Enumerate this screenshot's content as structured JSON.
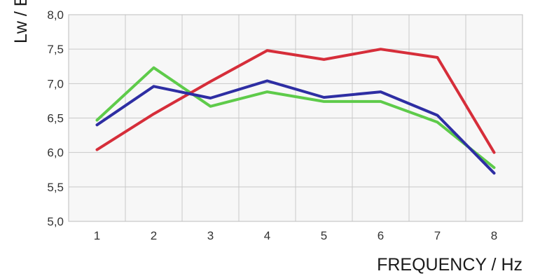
{
  "chart_data": {
    "type": "line",
    "xlabel": "FREQUENCY / Hz",
    "ylabel": "Lw / E",
    "x": [
      1,
      2,
      3,
      4,
      5,
      6,
      7,
      8
    ],
    "xlim": [
      0.5,
      8.5
    ],
    "ylim": [
      5.0,
      8.0
    ],
    "y_ticks": [
      "5,0",
      "5,5",
      "6,0",
      "6,5",
      "7,0",
      "7,5",
      "8,0"
    ],
    "x_ticks": [
      "1",
      "2",
      "3",
      "4",
      "5",
      "6",
      "7",
      "8"
    ],
    "grid": true,
    "series": [
      {
        "color": "#5ecb4a",
        "values": [
          6.47,
          7.23,
          6.67,
          6.88,
          6.74,
          6.74,
          6.44,
          5.78
        ]
      },
      {
        "color": "#d62e3a",
        "values": [
          6.04,
          6.56,
          7.03,
          7.48,
          7.35,
          7.5,
          7.38,
          6.0
        ]
      },
      {
        "color": "#2e2ea3",
        "values": [
          6.4,
          6.96,
          6.79,
          7.04,
          6.8,
          6.88,
          6.54,
          5.7
        ]
      }
    ]
  }
}
